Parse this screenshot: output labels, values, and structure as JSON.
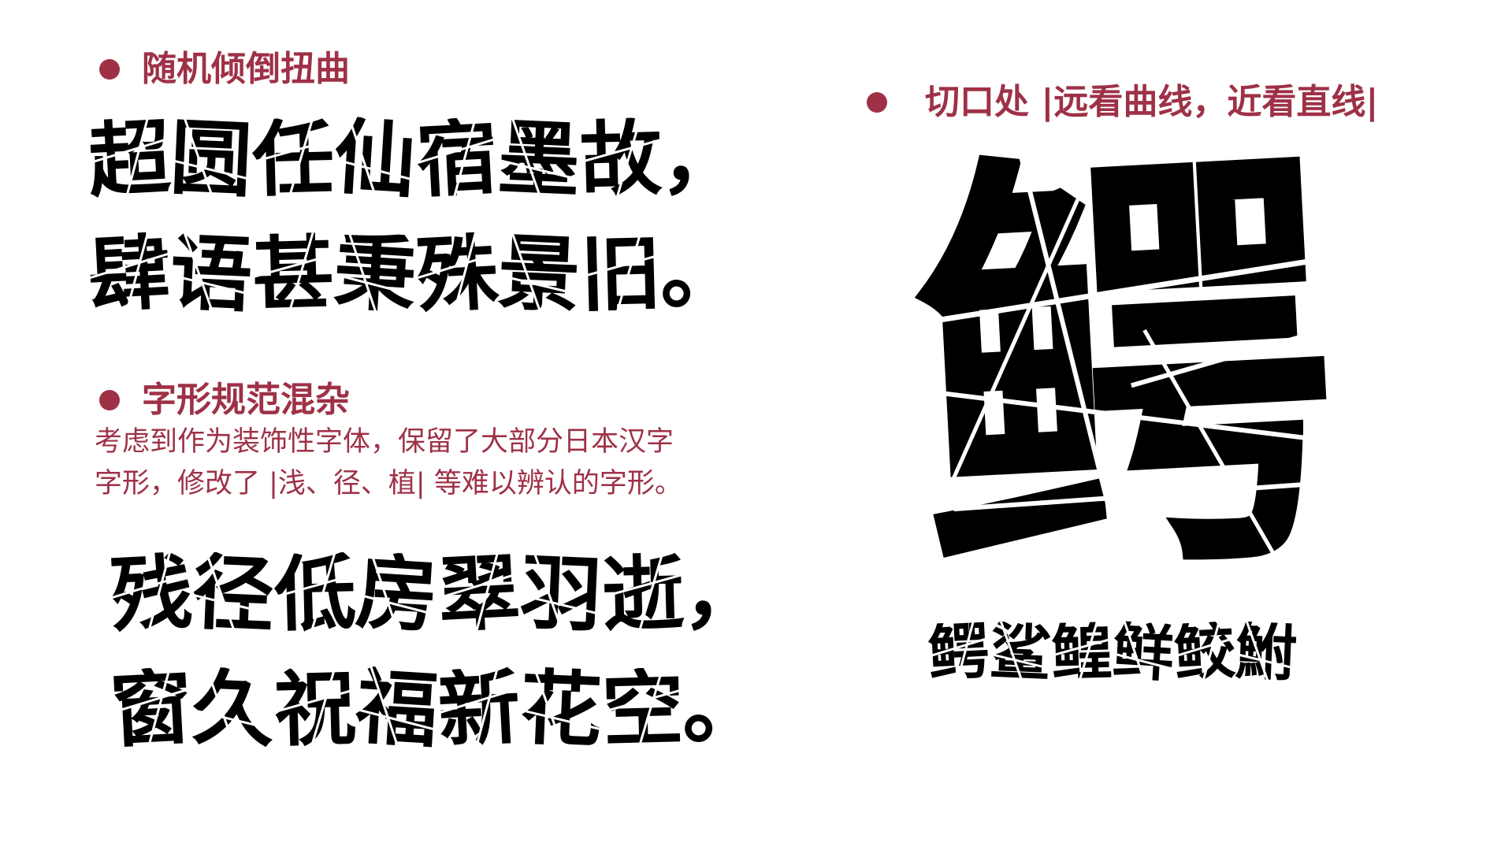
{
  "section1": {
    "heading": "随机倾倒扭曲",
    "lines": [
      "超圆任仙宿墨故，",
      "肆语甚秉殊景旧。"
    ]
  },
  "section2": {
    "heading": "字形规范混杂",
    "description_lines": [
      "考虑到作为装饰性字体，保留了大部分日本汉字",
      "字形，修改了 |浅、径、植| 等难以辨认的字形。"
    ],
    "lines": [
      "残径低房翠羽逝，",
      "窗久祝福新花空。"
    ]
  },
  "section3": {
    "heading": "切口处 |远看曲线，近看直线|",
    "big_glyph": "鳄",
    "small_glyphs": "鳄鲨鳇鲜鲛鮒"
  },
  "colors": {
    "accent": "#9e3146",
    "text": "#000000",
    "background": "#ffffff"
  }
}
